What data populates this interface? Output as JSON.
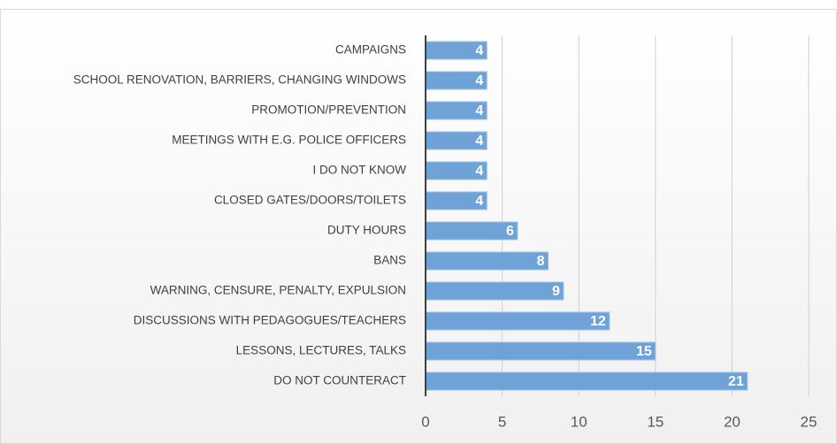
{
  "chart_data": {
    "type": "barh",
    "categories": [
      "CAMPAIGNS",
      "SCHOOL RENOVATION, BARRIERS, CHANGING WINDOWS",
      "PROMOTION/PREVENTION",
      "MEETINGS WITH E.G. POLICE OFFICERS",
      "I DO NOT KNOW",
      "CLOSED GATES/DOORS/TOILETS",
      "DUTY HOURS",
      "BANS",
      "WARNING, CENSURE, PENALTY, EXPULSION",
      "DISCUSSIONS WITH PEDAGOGUES/TEACHERS",
      "LESSONS, LECTURES, TALKS",
      "DO NOT COUNTERACT"
    ],
    "values": [
      4,
      4,
      4,
      4,
      4,
      4,
      6,
      8,
      9,
      12,
      15,
      21
    ],
    "color": "#6fa3d8",
    "xlim": [
      0,
      25
    ],
    "xticks": [
      0,
      5,
      10,
      15,
      20,
      25
    ],
    "grid": true
  }
}
